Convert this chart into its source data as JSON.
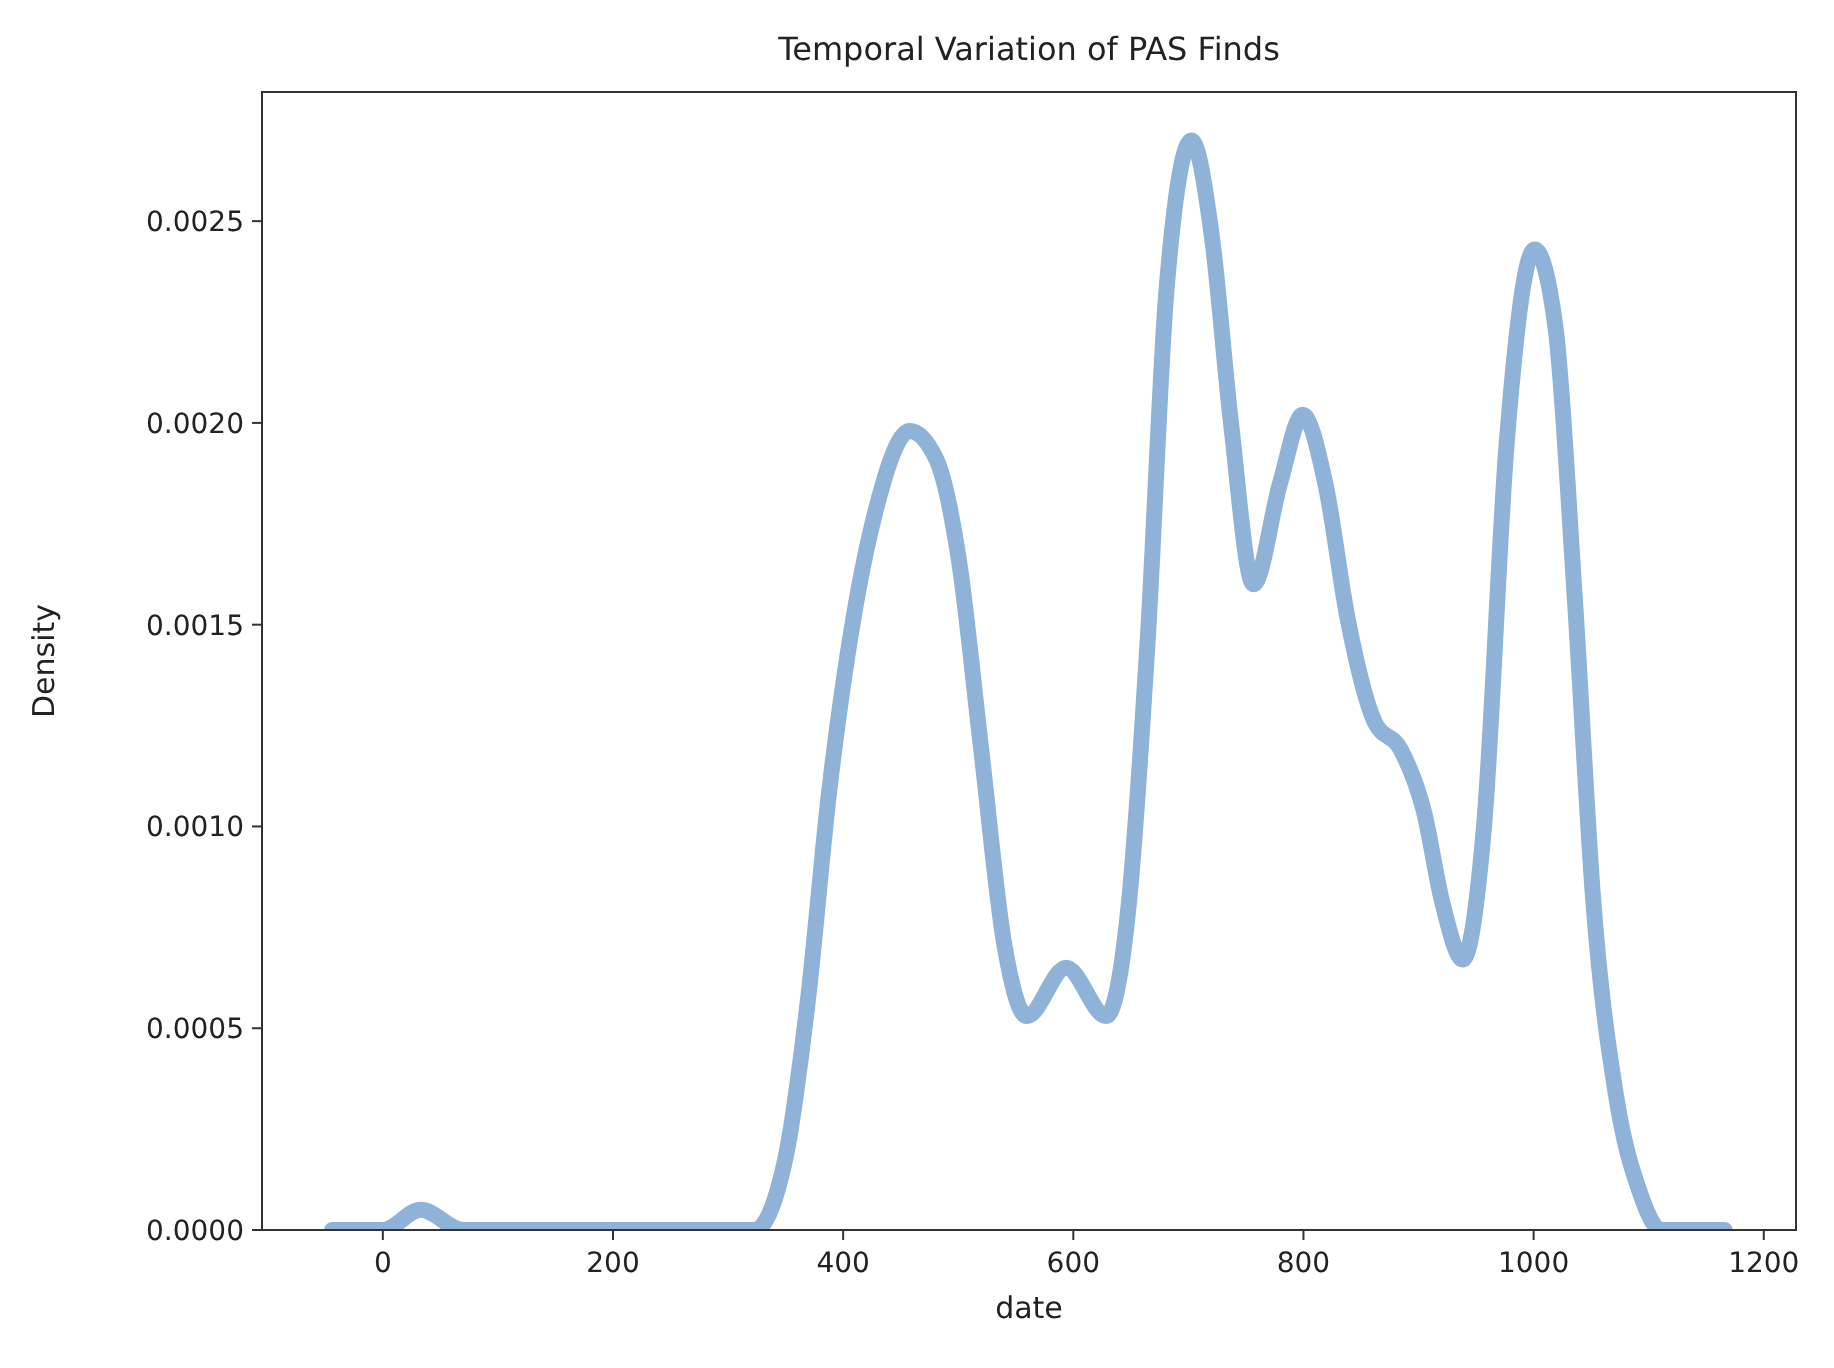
{
  "chart_data": {
    "type": "line",
    "title": "Temporal Variation of PAS Finds",
    "xlabel": "date",
    "ylabel": "Density",
    "xlim": [
      -105,
      1228
    ],
    "xticks": [
      0,
      200,
      400,
      600,
      800,
      1000,
      1200
    ],
    "ylim": [
      0,
      0.00282
    ],
    "yticks": [
      {
        "value": 0,
        "label": "0.0000"
      },
      {
        "value": 0.0005,
        "label": "0.0005"
      },
      {
        "value": 0.001,
        "label": "0.0010"
      },
      {
        "value": 0.0015,
        "label": "0.0015"
      },
      {
        "value": 0.002,
        "label": "0.0020"
      },
      {
        "value": 0.0025,
        "label": "0.0025"
      }
    ],
    "grid": false,
    "line_style": "solid",
    "series": [
      {
        "color": "#8fb2d8",
        "x": [
          -44,
          0,
          33,
          70,
          100,
          200,
          300,
          323,
          350,
          369,
          388,
          408.6,
          428,
          457.9,
          480.9,
          500.6,
          520,
          539.9,
          559.6,
          593.8,
          628.6,
          648.3,
          664.8,
          681,
          702.7,
          720.5,
          737,
          756.6,
          779.6,
          799.3,
          819,
          838.7,
          861.7,
          884.6,
          904.4,
          920.8,
          938.5,
          956.9,
          976.6,
          1000.9,
          1019.3,
          1035.7,
          1052,
          1071.8,
          1091.5,
          1111,
          1166
        ],
        "values": [
          0,
          0,
          5e-05,
          0,
          0,
          0,
          0,
          0,
          0.00018,
          0.00056,
          0.00109,
          0.00151,
          0.00178,
          0.00198,
          0.00191,
          0.00166,
          0.00119,
          0.00071,
          0.00053,
          0.00065,
          0.00053,
          0.00081,
          0.00147,
          0.00233,
          0.0027,
          0.00246,
          0.002,
          0.0016,
          0.00185,
          0.00202,
          0.00185,
          0.00151,
          0.00126,
          0.00119,
          0.00104,
          0.00081,
          0.00067,
          0.001,
          0.00195,
          0.00243,
          0.00223,
          0.00157,
          0.00081,
          0.00033,
          0.0001,
          0,
          0
        ]
      }
    ]
  }
}
